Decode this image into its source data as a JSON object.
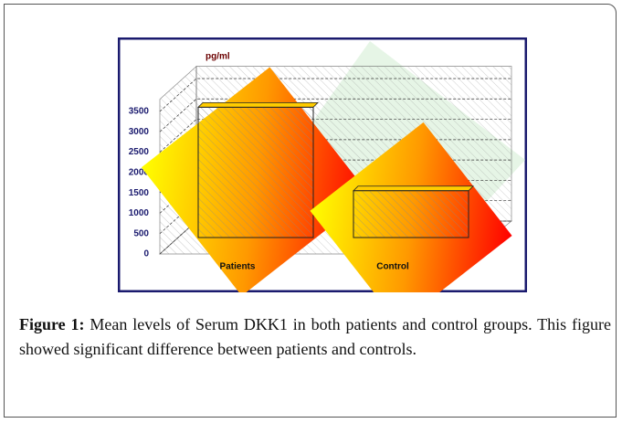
{
  "chart_data": {
    "type": "bar3d",
    "y_label": "pg/ml",
    "categories": [
      "Patients",
      "Control"
    ],
    "values": [
      3200,
      1150
    ],
    "ylim": [
      0,
      3800
    ],
    "yticks": [
      0,
      500,
      1000,
      1500,
      2000,
      2500,
      3000,
      3500
    ],
    "grid": true
  },
  "caption": {
    "label": "Figure 1:",
    "text": "Mean levels of Serum DKK1 in both patients and control groups. This figure showed significant difference between patients and controls."
  }
}
